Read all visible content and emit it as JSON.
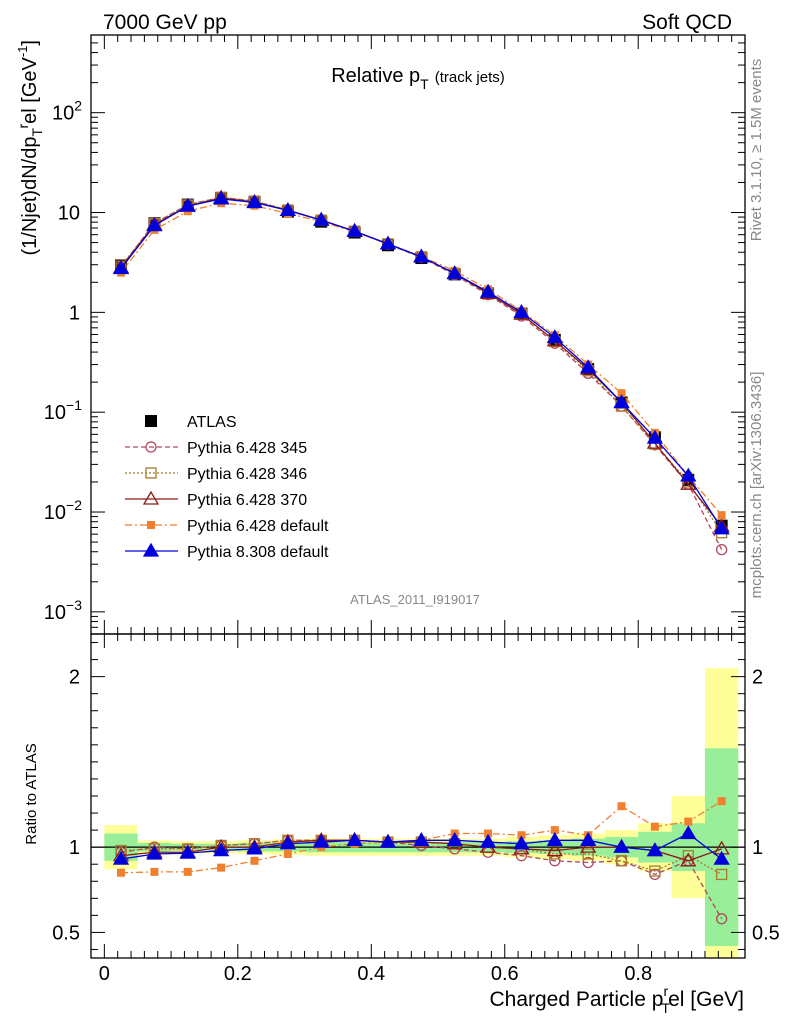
{
  "header": {
    "left": "7000 GeV pp",
    "right": "Soft QCD"
  },
  "side_text": {
    "rivet": "Rivet 3.1.10, ≥ 1.5M events",
    "source": "mcplots.cern.ch [arXiv:1306.3436]"
  },
  "chart_data": [
    {
      "type": "line",
      "panel": "main",
      "title": {
        "main": "Relative p",
        "sub": "T",
        "suffix": "(track jets)"
      },
      "analysis_label": "ATLAS_2011_I919017",
      "ylabel": {
        "a": "(1/Njet)dN/dp",
        "b": "T",
        "c": "r",
        "d": "el [GeV",
        "e": "-1",
        "f": "]"
      },
      "yscale": "log",
      "ylim": [
        0.0006,
        600
      ],
      "xlim": [
        -0.02,
        0.96
      ],
      "yticks": [
        {
          "v": 0.001,
          "base": "10",
          "exp": "−3"
        },
        {
          "v": 0.01,
          "base": "10",
          "exp": "−2"
        },
        {
          "v": 0.1,
          "base": "10",
          "exp": "−1"
        },
        {
          "v": 1,
          "base": "1",
          "exp": ""
        },
        {
          "v": 10,
          "base": "10",
          "exp": ""
        },
        {
          "v": 100,
          "base": "10",
          "exp": "2"
        }
      ],
      "x": [
        0.025,
        0.075,
        0.125,
        0.175,
        0.225,
        0.275,
        0.325,
        0.375,
        0.425,
        0.475,
        0.525,
        0.575,
        0.625,
        0.675,
        0.725,
        0.775,
        0.825,
        0.875,
        0.925
      ],
      "series": [
        {
          "name": "ATLAS",
          "color": "#000000",
          "marker": "square-filled",
          "dash": "",
          "values": [
            2.95,
            7.8,
            12.0,
            14.0,
            12.7,
            10.2,
            8.1,
            6.3,
            4.7,
            3.5,
            2.4,
            1.55,
            0.97,
            0.53,
            0.27,
            0.125,
            0.056,
            0.021,
            0.0073
          ]
        },
        {
          "name": "Pythia 6.428 345",
          "color": "#b0475d",
          "marker": "circle-open",
          "dash": "5,3",
          "values": [
            2.85,
            7.8,
            12.0,
            14.2,
            13.0,
            10.6,
            8.4,
            6.5,
            4.8,
            3.55,
            2.38,
            1.5,
            0.92,
            0.49,
            0.245,
            0.115,
            0.047,
            0.019,
            0.0042
          ]
        },
        {
          "name": "Pythia 6.428 346",
          "color": "#a87a2a",
          "marker": "square-open",
          "dash": "2,2",
          "values": [
            2.9,
            7.75,
            11.9,
            14.2,
            13.0,
            10.6,
            8.4,
            6.5,
            4.85,
            3.6,
            2.45,
            1.55,
            0.96,
            0.51,
            0.26,
            0.115,
            0.048,
            0.02,
            0.0062
          ]
        },
        {
          "name": "Pythia 6.428 370",
          "color": "#8c1a1a",
          "marker": "triangle-open",
          "dash": "",
          "values": [
            2.8,
            7.55,
            11.6,
            14.0,
            12.7,
            10.5,
            8.4,
            6.5,
            4.85,
            3.6,
            2.45,
            1.55,
            0.96,
            0.52,
            0.27,
            0.125,
            0.049,
            0.019,
            0.0072
          ]
        },
        {
          "name": "Pythia 6.428 default",
          "color": "#f08030",
          "marker": "square-filled-small",
          "dash": "7,3,2,3",
          "values": [
            2.5,
            6.7,
            10.3,
            12.4,
            11.7,
            9.8,
            8.1,
            6.4,
            4.85,
            3.65,
            2.6,
            1.7,
            1.03,
            0.59,
            0.3,
            0.155,
            0.062,
            0.023,
            0.0093
          ]
        },
        {
          "name": "Pythia 8.308 default",
          "color": "#0000dd",
          "marker": "triangle-filled",
          "dash": "",
          "values": [
            2.75,
            7.4,
            11.6,
            13.7,
            12.6,
            10.5,
            8.4,
            6.5,
            4.85,
            3.6,
            2.45,
            1.6,
            1.0,
            0.56,
            0.28,
            0.125,
            0.055,
            0.023,
            0.0068
          ]
        }
      ]
    },
    {
      "type": "line",
      "panel": "ratio",
      "ylabel": "Ratio to ATLAS",
      "xlabel": {
        "a": "Charged Particle p",
        "b": "T",
        "c": "r",
        "d": "el [GeV]"
      },
      "ylim": [
        0.35,
        2.25
      ],
      "yticks": [
        {
          "v": 0.5,
          "label": "0.5"
        },
        {
          "v": 1,
          "label": "1"
        },
        {
          "v": 2,
          "label": "2"
        }
      ],
      "xticks": [
        {
          "v": 0,
          "label": "0"
        },
        {
          "v": 0.2,
          "label": "0.2"
        },
        {
          "v": 0.4,
          "label": "0.4"
        },
        {
          "v": 0.6,
          "label": "0.6"
        },
        {
          "v": 0.8,
          "label": "0.8"
        }
      ],
      "bands": {
        "edges": [
          0.0,
          0.05,
          0.1,
          0.15,
          0.2,
          0.25,
          0.3,
          0.35,
          0.4,
          0.45,
          0.5,
          0.55,
          0.6,
          0.65,
          0.7,
          0.75,
          0.8,
          0.85,
          0.9,
          0.95
        ],
        "yellow": [
          0.13,
          0.04,
          0.035,
          0.035,
          0.04,
          0.045,
          0.05,
          0.05,
          0.05,
          0.05,
          0.05,
          0.05,
          0.06,
          0.07,
          0.08,
          0.1,
          0.14,
          0.3,
          1.05
        ],
        "green": [
          0.08,
          0.025,
          0.02,
          0.02,
          0.025,
          0.025,
          0.03,
          0.03,
          0.03,
          0.03,
          0.03,
          0.03,
          0.035,
          0.04,
          0.05,
          0.06,
          0.09,
          0.14,
          0.58
        ]
      },
      "series": [
        {
          "name": "Pythia 6.428 345",
          "color": "#b0475d",
          "marker": "circle-open",
          "dash": "5,3",
          "values": [
            0.97,
            1.0,
            0.99,
            1.01,
            1.02,
            1.04,
            1.04,
            1.04,
            1.03,
            1.01,
            0.99,
            0.97,
            0.95,
            0.92,
            0.91,
            0.92,
            0.84,
            0.92,
            0.58
          ]
        },
        {
          "name": "Pythia 6.428 346",
          "color": "#a87a2a",
          "marker": "square-open",
          "dash": "2,2",
          "values": [
            0.98,
            0.99,
            0.99,
            1.01,
            1.02,
            1.04,
            1.04,
            1.04,
            1.03,
            1.03,
            1.02,
            1.0,
            0.99,
            0.96,
            0.96,
            0.92,
            0.86,
            0.95,
            0.84
          ]
        },
        {
          "name": "Pythia 6.428 370",
          "color": "#8c1a1a",
          "marker": "triangle-open",
          "dash": "",
          "values": [
            0.95,
            0.97,
            0.97,
            1.0,
            1.0,
            1.03,
            1.04,
            1.04,
            1.03,
            1.03,
            1.02,
            1.0,
            0.99,
            0.98,
            1.0,
            1.0,
            0.98,
            0.92,
            0.99
          ]
        },
        {
          "name": "Pythia 6.428 default",
          "color": "#f08030",
          "marker": "square-filled-small",
          "dash": "7,3,2,3",
          "values": [
            0.85,
            0.855,
            0.855,
            0.88,
            0.92,
            0.96,
            1.0,
            1.02,
            1.03,
            1.04,
            1.08,
            1.08,
            1.07,
            1.1,
            1.07,
            1.24,
            1.12,
            1.15,
            1.27
          ]
        },
        {
          "name": "Pythia 8.308 default",
          "color": "#0000dd",
          "marker": "triangle-filled",
          "dash": "",
          "values": [
            0.93,
            0.96,
            0.965,
            0.98,
            0.99,
            1.02,
            1.03,
            1.04,
            1.03,
            1.04,
            1.04,
            1.03,
            1.02,
            1.04,
            1.04,
            1.0,
            0.98,
            1.08,
            0.93
          ]
        }
      ]
    }
  ]
}
